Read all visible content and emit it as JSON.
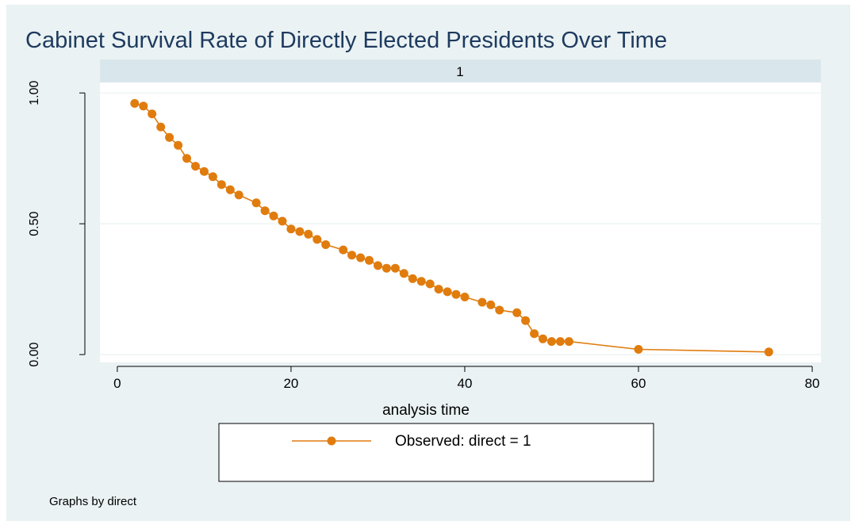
{
  "chart_data": {
    "type": "line",
    "title": "Cabinet Survival Rate of Directly Elected Presidents Over Time",
    "panel_label": "1",
    "xlabel": "analysis time",
    "ylabel": "",
    "xlim": [
      -2,
      81
    ],
    "ylim": [
      -0.03,
      1.04
    ],
    "x_ticks": [
      0,
      20,
      40,
      60,
      80
    ],
    "x_tick_labels": [
      "0",
      "20",
      "40",
      "60",
      "80"
    ],
    "y_ticks": [
      0,
      0.5,
      1
    ],
    "y_tick_labels": [
      "0.00",
      "0.50",
      "1.00"
    ],
    "grid": "horizontal",
    "legend_position": "bottom",
    "note": "Graphs by direct",
    "colors": {
      "background": "#eaf2f3",
      "plot_area": "#ffffff",
      "strip": "#d9e6eb",
      "series": "#e07c0e",
      "title": "#1e3a5f",
      "grid": "#eaf2f3"
    },
    "series": [
      {
        "name": "Observed: direct = 1",
        "marker": "circle",
        "points": [
          [
            2,
            0.96
          ],
          [
            3,
            0.95
          ],
          [
            4,
            0.92
          ],
          [
            5,
            0.87
          ],
          [
            6,
            0.83
          ],
          [
            7,
            0.8
          ],
          [
            8,
            0.75
          ],
          [
            9,
            0.72
          ],
          [
            10,
            0.7
          ],
          [
            11,
            0.68
          ],
          [
            12,
            0.65
          ],
          [
            13,
            0.63
          ],
          [
            14,
            0.61
          ],
          [
            16,
            0.58
          ],
          [
            17,
            0.55
          ],
          [
            18,
            0.53
          ],
          [
            19,
            0.51
          ],
          [
            20,
            0.48
          ],
          [
            21,
            0.47
          ],
          [
            22,
            0.46
          ],
          [
            23,
            0.44
          ],
          [
            24,
            0.42
          ],
          [
            26,
            0.4
          ],
          [
            27,
            0.38
          ],
          [
            28,
            0.37
          ],
          [
            29,
            0.36
          ],
          [
            30,
            0.34
          ],
          [
            31,
            0.33
          ],
          [
            32,
            0.33
          ],
          [
            33,
            0.31
          ],
          [
            34,
            0.29
          ],
          [
            35,
            0.28
          ],
          [
            36,
            0.27
          ],
          [
            37,
            0.25
          ],
          [
            38,
            0.24
          ],
          [
            39,
            0.23
          ],
          [
            40,
            0.22
          ],
          [
            42,
            0.2
          ],
          [
            43,
            0.19
          ],
          [
            44,
            0.17
          ],
          [
            46,
            0.16
          ],
          [
            47,
            0.13
          ],
          [
            48,
            0.08
          ],
          [
            49,
            0.06
          ],
          [
            50,
            0.05
          ],
          [
            51,
            0.05
          ],
          [
            52,
            0.05
          ],
          [
            60,
            0.02
          ],
          [
            75,
            0.01
          ]
        ]
      }
    ]
  }
}
